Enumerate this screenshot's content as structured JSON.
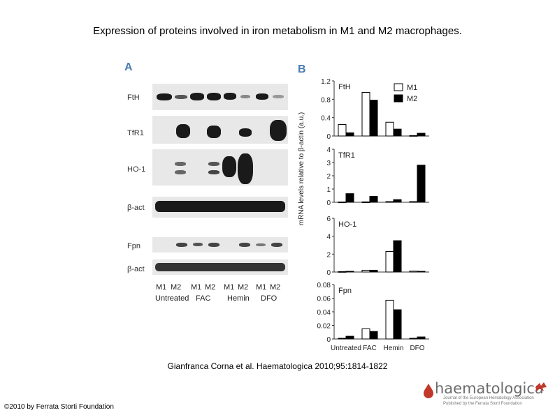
{
  "title": "Expression of proteins involved in iron metabolism in M1 and M2 macrophages.",
  "panel_a": {
    "letter": "A",
    "rows": [
      "FtH",
      "TfR1",
      "HO-1",
      "β-act",
      "Fpn",
      "β-act"
    ],
    "lanes": [
      "M1",
      "M2",
      "M1",
      "M2",
      "M1",
      "M2",
      "M1",
      "M2"
    ],
    "groups": [
      "Untreated",
      "FAC",
      "Hemin",
      "DFO"
    ]
  },
  "chart_data": {
    "panel_letter": "B",
    "type": "bar",
    "ylabel": "mRNA levels relative to β-actin (a.u.)",
    "categories": [
      "Untreated",
      "FAC",
      "Hemin",
      "DFO"
    ],
    "legend": [
      {
        "name": "M1",
        "color": "#ffffff"
      },
      {
        "name": "M2",
        "color": "#000000"
      }
    ],
    "legend_position": "top-right",
    "panels": [
      {
        "label": "FtH",
        "ylim": [
          0,
          1.2
        ],
        "ticks": [
          "0",
          "0.4",
          "0.8",
          "1.2"
        ],
        "series": [
          {
            "name": "M1",
            "values": [
              0.25,
              0.95,
              0.3,
              0.01
            ]
          },
          {
            "name": "M2",
            "values": [
              0.07,
              0.78,
              0.15,
              0.06
            ]
          }
        ]
      },
      {
        "label": "TfR1",
        "ylim": [
          0,
          4
        ],
        "ticks": [
          "0",
          "1",
          "2",
          "3",
          "4"
        ],
        "series": [
          {
            "name": "M1",
            "values": [
              0.02,
              0.03,
              0.05,
              0.05
            ]
          },
          {
            "name": "M2",
            "values": [
              0.65,
              0.45,
              0.2,
              2.8
            ]
          }
        ]
      },
      {
        "label": "HO-1",
        "ylim": [
          0,
          6
        ],
        "ticks": [
          "0",
          "2",
          "4",
          "6"
        ],
        "series": [
          {
            "name": "M1",
            "values": [
              0.05,
              0.2,
              2.3,
              0.1
            ]
          },
          {
            "name": "M2",
            "values": [
              0.08,
              0.2,
              3.5,
              0.08
            ]
          }
        ]
      },
      {
        "label": "Fpn",
        "ylim": [
          0,
          0.08
        ],
        "ticks": [
          "0",
          "0.02",
          "0.04",
          "0.06",
          "0.08"
        ],
        "series": [
          {
            "name": "M1",
            "values": [
              0.001,
              0.015,
              0.057,
              0.001
            ]
          },
          {
            "name": "M2",
            "values": [
              0.004,
              0.011,
              0.043,
              0.003
            ]
          }
        ]
      }
    ]
  },
  "citation": "Gianfranca Corna et al. Haematologica 2010;95:1814-1822",
  "copyright": "©2010 by Ferrata Storti Foundation",
  "logo": {
    "word": "haematologica",
    "sub1": "Journal of the European Hematology Association",
    "sub2": "Published by the Ferrata Storti Foundation"
  }
}
